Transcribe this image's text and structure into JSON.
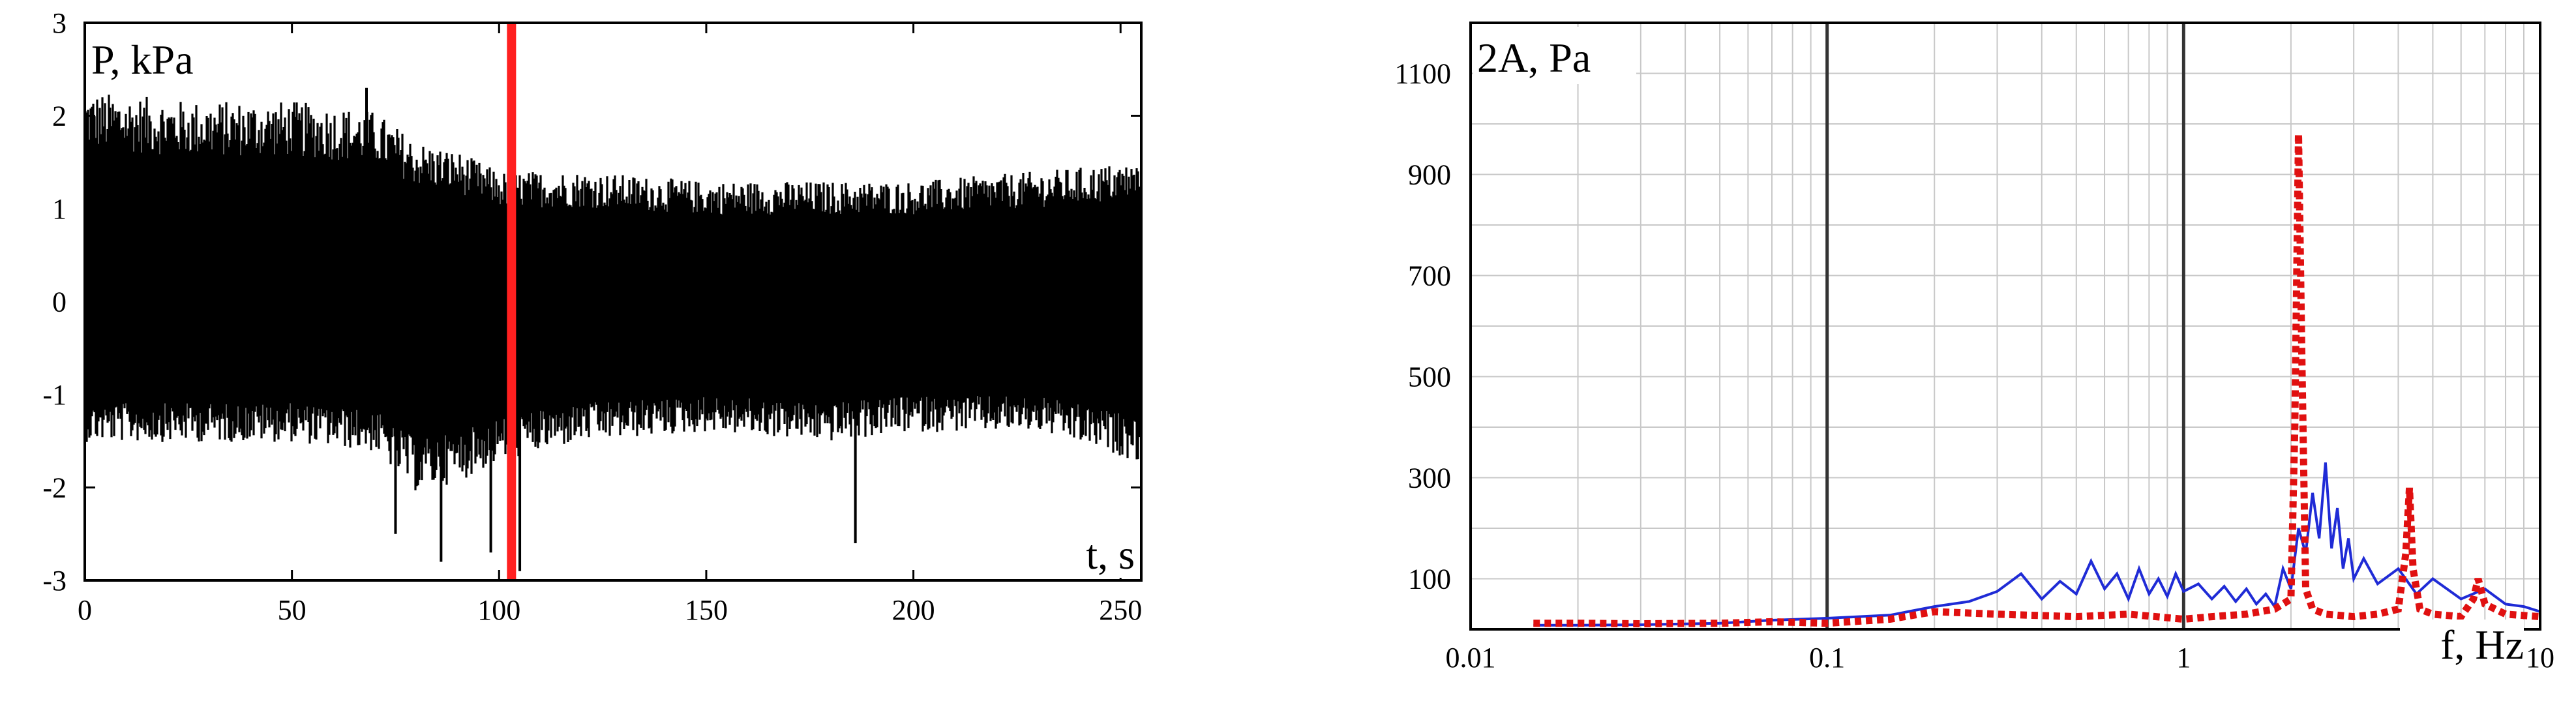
{
  "chart_data": [
    {
      "type": "line",
      "xlabel": "t, s",
      "ylabel": "P, kPa",
      "xlim": [
        0,
        255
      ],
      "ylim": [
        -3,
        3
      ],
      "x_ticks": [
        "0",
        "50",
        "100",
        "150",
        "200",
        "250"
      ],
      "y_ticks": [
        "3",
        "2",
        "1",
        "0",
        "-1",
        "-2",
        "-3"
      ],
      "grid": false,
      "signal": {
        "color": "#000000",
        "envelope": {
          "t": [
            0,
            25,
            50,
            70,
            80,
            90,
            100,
            120,
            150,
            180,
            200,
            230,
            255
          ],
          "upper": [
            2.1,
            2.0,
            2.0,
            1.9,
            1.6,
            1.5,
            1.3,
            1.3,
            1.2,
            1.2,
            1.2,
            1.3,
            1.4
          ],
          "lower": [
            -1.4,
            -1.4,
            -1.4,
            -1.5,
            -1.9,
            -1.8,
            -1.6,
            -1.4,
            -1.3,
            -1.4,
            -1.3,
            -1.3,
            -1.6
          ]
        },
        "spikes": [
          {
            "t": 75,
            "p": -2.5
          },
          {
            "t": 86,
            "p": -2.8
          },
          {
            "t": 98,
            "p": -2.7
          },
          {
            "t": 105,
            "p": -2.9
          },
          {
            "t": 186,
            "p": -2.6
          },
          {
            "t": 68,
            "p": 2.3
          }
        ]
      },
      "marker": {
        "t": 103,
        "color": "#ff2020"
      }
    },
    {
      "type": "line",
      "xlabel": "f, Hz",
      "ylabel": "2A, Pa",
      "xscale": "log",
      "xlim": [
        0.01,
        10
      ],
      "ylim": [
        0,
        1200
      ],
      "x_ticks": [
        {
          "value": 0.01,
          "label": "0.01"
        },
        {
          "value": 0.1,
          "label": "0.1"
        },
        {
          "value": 1,
          "label": "1"
        },
        {
          "value": 10,
          "label": "10"
        }
      ],
      "y_ticks": [
        {
          "value": 100,
          "label": "100"
        },
        {
          "value": 300,
          "label": "300"
        },
        {
          "value": 500,
          "label": "500"
        },
        {
          "value": 700,
          "label": "700"
        },
        {
          "value": 900,
          "label": "900"
        },
        {
          "value": 1100,
          "label": "1100"
        }
      ],
      "grid": true,
      "series": [
        {
          "style": "solid",
          "color": "#1f2bd6",
          "x": [
            0.015,
            0.02,
            0.03,
            0.05,
            0.07,
            0.1,
            0.15,
            0.2,
            0.25,
            0.3,
            0.35,
            0.4,
            0.45,
            0.5,
            0.55,
            0.6,
            0.65,
            0.7,
            0.75,
            0.8,
            0.85,
            0.9,
            0.95,
            1.0,
            1.1,
            1.2,
            1.3,
            1.4,
            1.5,
            1.6,
            1.7,
            1.8,
            1.9,
            2.0,
            2.1,
            2.2,
            2.3,
            2.4,
            2.5,
            2.6,
            2.7,
            2.8,
            2.9,
            3.0,
            3.2,
            3.5,
            4.0,
            4.5,
            5.0,
            6.0,
            7.0,
            8.0,
            9.0,
            10.0
          ],
          "y": [
            8,
            8,
            9,
            12,
            18,
            22,
            28,
            45,
            55,
            75,
            110,
            60,
            95,
            70,
            135,
            80,
            110,
            60,
            120,
            70,
            100,
            65,
            110,
            75,
            90,
            60,
            85,
            55,
            80,
            50,
            70,
            45,
            120,
            80,
            200,
            150,
            270,
            180,
            330,
            160,
            240,
            120,
            180,
            100,
            140,
            90,
            120,
            70,
            100,
            60,
            80,
            50,
            45,
            35
          ]
        },
        {
          "style": "dotted",
          "color": "#e01010",
          "x": [
            0.015,
            0.02,
            0.03,
            0.05,
            0.07,
            0.1,
            0.15,
            0.2,
            0.3,
            0.5,
            0.7,
            1.0,
            1.2,
            1.5,
            1.8,
            2.0,
            2.05,
            2.1,
            2.15,
            2.2,
            2.3,
            2.5,
            3.0,
            3.5,
            4.0,
            4.2,
            4.3,
            4.4,
            4.6,
            5.0,
            6.0,
            6.5,
            6.7,
            7.0,
            8.0,
            10.0
          ],
          "y": [
            12,
            12,
            11,
            12,
            15,
            12,
            20,
            35,
            30,
            25,
            30,
            20,
            25,
            30,
            40,
            60,
            400,
            980,
            500,
            80,
            40,
            30,
            25,
            30,
            40,
            150,
            280,
            120,
            40,
            30,
            25,
            60,
            100,
            50,
            30,
            25
          ]
        }
      ]
    }
  ]
}
